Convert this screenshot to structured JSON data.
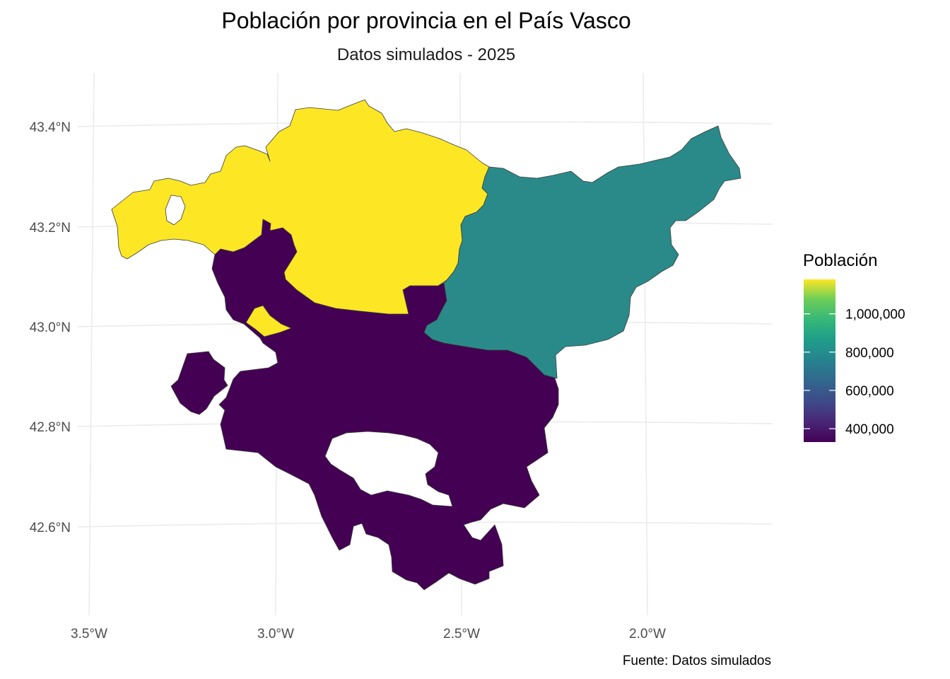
{
  "chart": {
    "title": "Población por provincia en el País Vasco",
    "subtitle": "Datos simulados - 2025",
    "caption": "Fuente: Datos simulados"
  },
  "colors": {
    "bizkaia": "#fde725",
    "gipuzkoa": "#2a8a8a",
    "araba": "#440154",
    "background": "#ffffff",
    "grid": "#ebebeb"
  },
  "chart_data": {
    "type": "choropleth",
    "title": "Población por provincia en el País Vasco",
    "subtitle": "Datos simulados - 2025",
    "caption": "Fuente: Datos simulados",
    "grid": true,
    "legend_position": "right",
    "legend": {
      "title": "Población",
      "palette": "viridis",
      "min": 330000,
      "max": 1180000,
      "breaks": [
        400000,
        600000,
        800000,
        1000000
      ],
      "labels": [
        "400,000",
        "600,000",
        "800,000",
        "1,000,000"
      ]
    },
    "x_axis": {
      "label": "",
      "ticks": [
        -3.5,
        -3.0,
        -2.5,
        -2.0
      ],
      "tick_labels": [
        "3.5°W",
        "3.0°W",
        "2.5°W",
        "2.0°W"
      ]
    },
    "y_axis": {
      "label": "",
      "ticks": [
        42.6,
        42.8,
        43.0,
        43.2,
        43.4
      ],
      "tick_labels": [
        "42.6°N",
        "42.8°N",
        "43.0°N",
        "43.2°N",
        "43.4°N"
      ]
    },
    "regions": [
      {
        "id": "bizkaia",
        "poblacion": 1150000
      },
      {
        "id": "gipuzkoa",
        "poblacion": 720000
      },
      {
        "id": "araba",
        "poblacion": 335000
      }
    ]
  }
}
